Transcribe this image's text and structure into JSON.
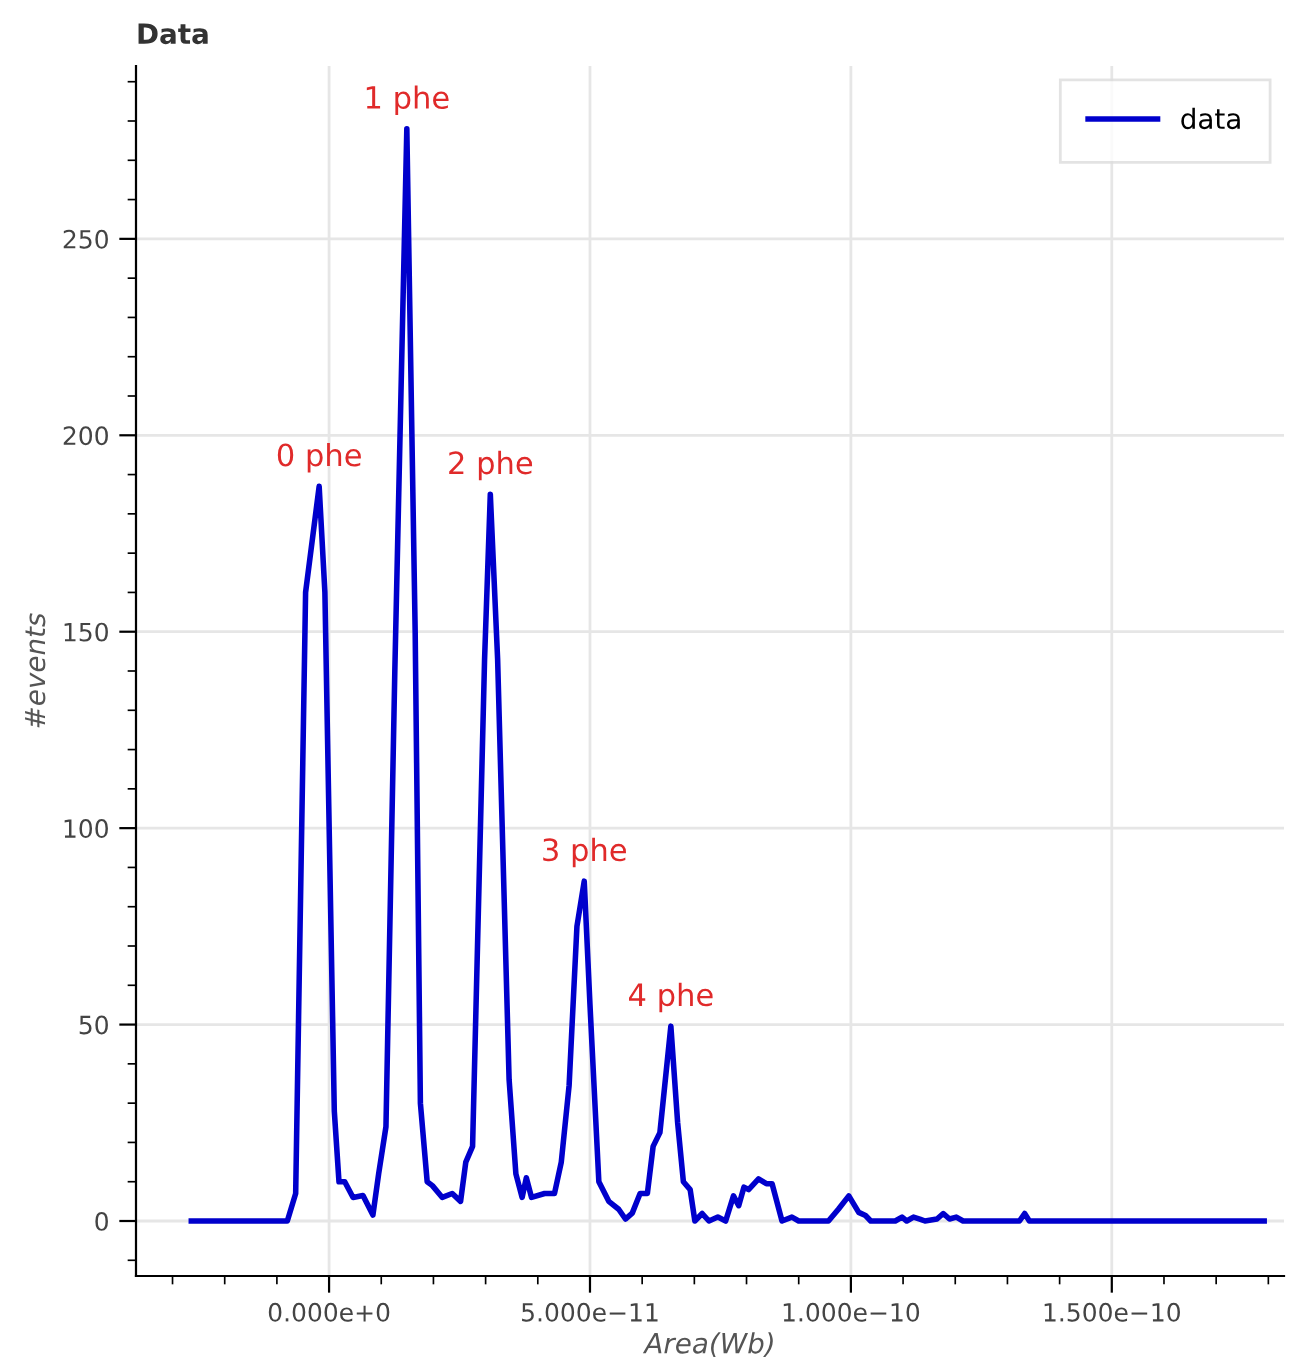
{
  "chart_data": {
    "type": "line",
    "title": "Data",
    "xlabel": "Area(Wb)",
    "ylabel": "#events",
    "xlim": [
      -3.7e-11,
      1.83e-10
    ],
    "ylim": [
      -14,
      294
    ],
    "xticks": [
      {
        "value": 0,
        "label": "0.000e+0"
      },
      {
        "value": 5e-11,
        "label": "5.000e−11"
      },
      {
        "value": 1e-10,
        "label": "1.000e−10"
      },
      {
        "value": 1.5e-10,
        "label": "1.500e−10"
      }
    ],
    "yticks": [
      0,
      50,
      100,
      150,
      200,
      250
    ],
    "grid": true,
    "legend": "top right",
    "annotations": [
      {
        "text": "0 phe",
        "x": -1.9e-12,
        "y": 187
      },
      {
        "text": "1 phe",
        "x": 1.49e-11,
        "y": 278
      },
      {
        "text": "2 phe",
        "x": 3.09e-11,
        "y": 185
      },
      {
        "text": "3 phe",
        "x": 4.89e-11,
        "y": 86.5
      },
      {
        "text": "4 phe",
        "x": 6.55e-11,
        "y": 49.6
      }
    ],
    "series": [
      {
        "name": "data",
        "color": "#0000cc",
        "x": [
          -2.64e-11,
          -8e-12,
          -6.4e-12,
          -4.5e-12,
          -1.9e-12,
          -8e-13,
          1e-12,
          1.9e-12,
          3e-12,
          4.6e-12,
          6.5e-12,
          8.4e-12,
          9.5e-12,
          1.09e-11,
          1.26e-11,
          1.49e-11,
          1.65e-11,
          1.75e-11,
          1.88e-11,
          1.98e-11,
          2.17e-11,
          2.36e-11,
          2.52e-11,
          2.62e-11,
          2.75e-11,
          2.98e-11,
          3.09e-11,
          3.23e-11,
          3.45e-11,
          3.58e-11,
          3.7e-11,
          3.78e-11,
          3.88e-11,
          4.13e-11,
          4.32e-11,
          4.45e-11,
          4.6e-11,
          4.75e-11,
          4.89e-11,
          5e-11,
          5.17e-11,
          5.36e-11,
          5.55e-11,
          5.68e-11,
          5.81e-11,
          5.96e-11,
          6.1e-11,
          6.21e-11,
          6.34e-11,
          6.55e-11,
          6.68e-11,
          6.79e-11,
          6.92e-11,
          7.01e-11,
          7.15e-11,
          7.28e-11,
          7.45e-11,
          7.6e-11,
          7.75e-11,
          7.85e-11,
          7.95e-11,
          8.04e-11,
          8.23e-11,
          8.38e-11,
          8.49e-11,
          8.68e-11,
          8.87e-11,
          9e-11,
          9.57e-11,
          9.76e-11,
          9.96e-11,
          1.015e-10,
          1.028e-10,
          1.038e-10,
          1.085e-10,
          1.098e-10,
          1.107e-10,
          1.12e-10,
          1.132e-10,
          1.142e-10,
          1.165e-10,
          1.177e-10,
          1.189e-10,
          1.202e-10,
          1.215e-10,
          1.323e-10,
          1.333e-10,
          1.342e-10,
          1.792e-10
        ],
        "values": [
          0,
          0,
          7,
          160,
          187,
          160,
          28,
          10,
          10,
          6,
          6.5,
          1.5,
          12,
          24,
          140,
          278,
          150,
          30,
          10,
          9,
          6,
          7,
          5,
          15,
          19,
          143,
          185,
          143,
          36,
          12,
          6,
          11,
          6,
          7,
          7,
          15,
          34.5,
          75,
          86.5,
          55,
          10,
          5,
          3,
          0.5,
          2,
          7,
          7,
          19,
          22.5,
          49.6,
          25,
          10,
          8,
          0,
          1.9,
          0,
          1,
          0,
          6.4,
          3.9,
          8.6,
          8,
          10.7,
          9.5,
          9.5,
          0,
          1,
          0,
          0,
          3,
          6.4,
          2.2,
          1.4,
          0,
          0,
          1,
          0,
          1,
          0.5,
          0,
          0.5,
          1.9,
          0.5,
          1,
          0,
          0,
          1.9,
          0,
          0
        ]
      }
    ]
  }
}
